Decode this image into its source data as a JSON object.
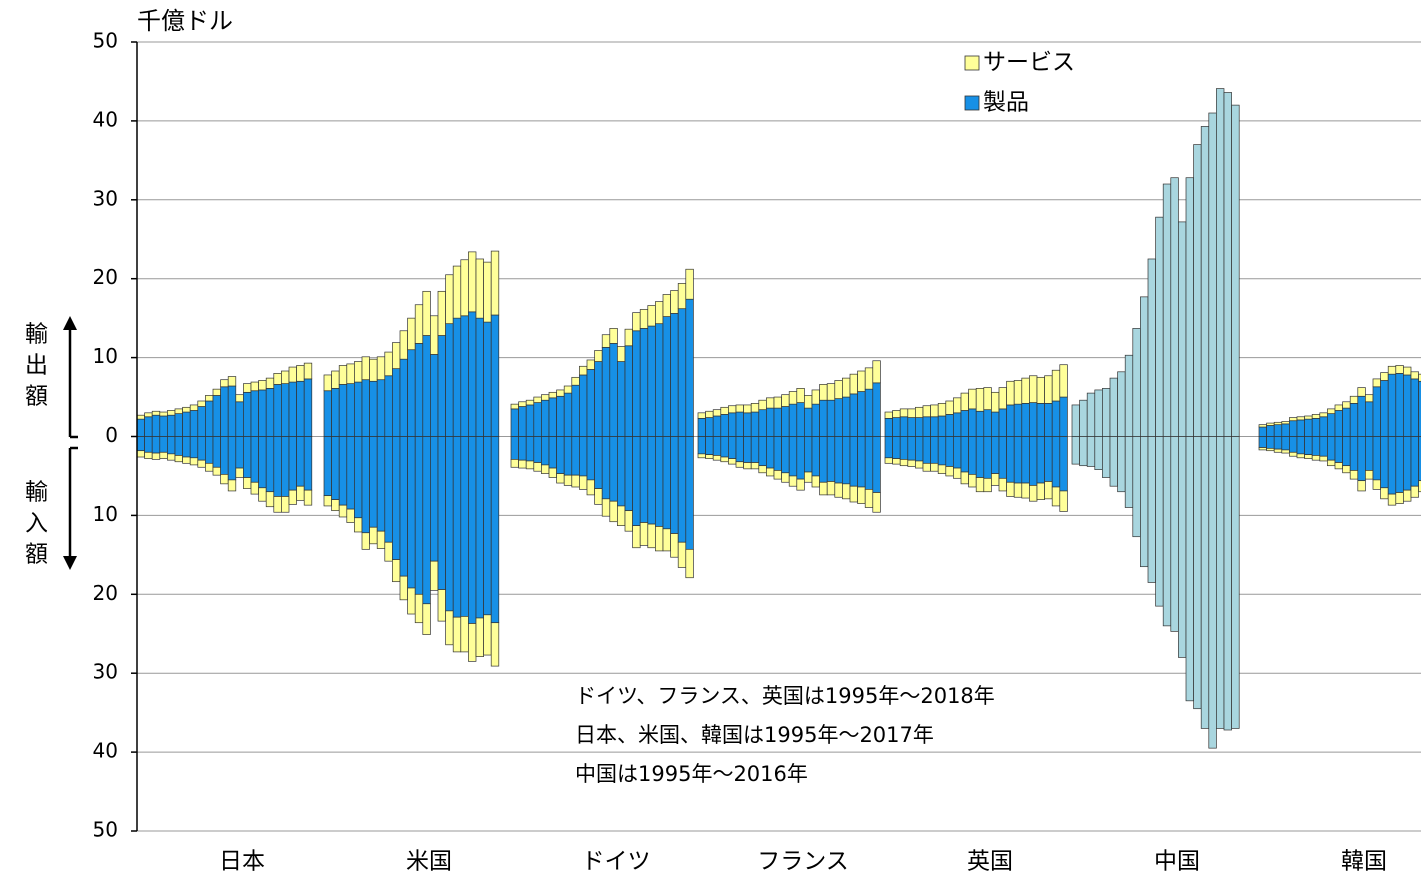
{
  "chart_data": {
    "type": "bar",
    "title": "千億ドル",
    "export_label": "輸出額",
    "import_label": "輸入額",
    "ylim": [
      -50,
      50
    ],
    "yticks": [
      {
        "value": -50,
        "label": "50"
      },
      {
        "value": -40,
        "label": "40"
      },
      {
        "value": -30,
        "label": "30"
      },
      {
        "value": -20,
        "label": "20"
      },
      {
        "value": -10,
        "label": "10"
      },
      0,
      10,
      20,
      30,
      40,
      50
    ],
    "grid": true,
    "legend": "top-right",
    "series": [
      {
        "name": "サービス",
        "color": "#ffff99"
      },
      {
        "name": "製品",
        "color": "#1790e6"
      }
    ],
    "total_color": "#a9d6df",
    "groups": [
      {
        "name": "日本",
        "export_goods": [
          2.2,
          2.5,
          2.7,
          2.6,
          2.7,
          2.9,
          3.1,
          3.3,
          3.8,
          4.5,
          5.2,
          6.3,
          6.4,
          4.4,
          5.6,
          5.8,
          5.9,
          6.1,
          6.6,
          6.7,
          6.9,
          7.0,
          7.3
        ],
        "export_services": [
          0.5,
          0.5,
          0.5,
          0.5,
          0.6,
          0.6,
          0.6,
          0.7,
          0.7,
          0.7,
          0.8,
          0.9,
          1.2,
          0.9,
          1.1,
          1.1,
          1.2,
          1.3,
          1.4,
          1.6,
          1.9,
          2.0,
          2.0
        ],
        "import_goods": [
          -1.8,
          -2.0,
          -2.1,
          -2.0,
          -2.2,
          -2.4,
          -2.6,
          -2.7,
          -3.0,
          -3.4,
          -3.9,
          -4.8,
          -5.5,
          -4.0,
          -5.2,
          -5.8,
          -6.5,
          -7.0,
          -7.6,
          -7.6,
          -6.8,
          -6.3,
          -6.8
        ],
        "import_services": [
          -0.8,
          -0.8,
          -0.8,
          -0.8,
          -0.8,
          -0.8,
          -0.8,
          -0.9,
          -0.9,
          -1.0,
          -1.0,
          -1.2,
          -1.4,
          -1.2,
          -1.4,
          -1.5,
          -1.7,
          -1.9,
          -2.0,
          -2.0,
          -1.8,
          -1.8,
          -1.9
        ]
      },
      {
        "name": "米国",
        "export_goods": [
          5.8,
          6.1,
          6.6,
          6.7,
          6.9,
          7.2,
          7.0,
          7.2,
          7.7,
          8.6,
          9.8,
          11.0,
          11.8,
          12.8,
          10.4,
          12.8,
          14.3,
          15.0,
          15.3,
          15.8,
          15.0,
          14.5,
          15.4
        ],
        "export_services": [
          2.0,
          2.2,
          2.4,
          2.5,
          2.6,
          2.9,
          2.8,
          2.9,
          3.0,
          3.3,
          3.6,
          4.0,
          4.9,
          5.6,
          4.9,
          5.6,
          6.2,
          6.6,
          7.1,
          7.6,
          7.5,
          7.6,
          8.1
        ],
        "import_goods": [
          -7.5,
          -8.0,
          -8.7,
          -9.2,
          -10.3,
          -12.2,
          -11.5,
          -12.0,
          -13.4,
          -15.6,
          -17.7,
          -19.2,
          -20.0,
          -21.2,
          -15.8,
          -19.4,
          -22.1,
          -22.9,
          -22.8,
          -23.7,
          -23.0,
          -22.6,
          -23.6
        ],
        "import_services": [
          -1.3,
          -1.4,
          -1.5,
          -1.7,
          -1.8,
          -2.1,
          -2.1,
          -2.2,
          -2.4,
          -2.8,
          -3.0,
          -3.3,
          -3.6,
          -3.9,
          -3.7,
          -4.0,
          -4.3,
          -4.4,
          -4.5,
          -4.8,
          -4.9,
          -5.1,
          -5.5
        ]
      },
      {
        "name": "ドイツ",
        "export_goods": [
          3.5,
          3.8,
          4.0,
          4.3,
          4.6,
          4.9,
          5.1,
          5.5,
          6.5,
          7.8,
          8.5,
          9.5,
          11.3,
          11.8,
          9.5,
          11.5,
          13.4,
          13.7,
          14.0,
          14.3,
          15.2,
          15.6,
          16.2,
          17.4
        ],
        "export_services": [
          0.6,
          0.6,
          0.6,
          0.7,
          0.7,
          0.7,
          0.8,
          0.9,
          1.0,
          1.1,
          1.2,
          1.4,
          1.6,
          1.9,
          1.9,
          2.1,
          2.3,
          2.4,
          2.6,
          2.8,
          2.8,
          2.9,
          3.2,
          3.8
        ],
        "import_goods": [
          -2.9,
          -3.0,
          -3.1,
          -3.3,
          -3.6,
          -4.0,
          -4.7,
          -4.9,
          -4.9,
          -5.0,
          -5.5,
          -6.6,
          -7.9,
          -8.2,
          -8.8,
          -9.4,
          -11.3,
          -10.9,
          -11.1,
          -11.4,
          -11.7,
          -12.3,
          -13.4,
          -14.3
        ],
        "import_services": [
          -1.0,
          -1.0,
          -1.0,
          -1.1,
          -1.1,
          -1.2,
          -1.2,
          -1.3,
          -1.5,
          -1.7,
          -1.9,
          -2.0,
          -2.2,
          -2.6,
          -2.5,
          -2.6,
          -2.8,
          -2.9,
          -3.0,
          -3.1,
          -2.8,
          -3.0,
          -3.2,
          -3.6
        ]
      },
      {
        "name": "フランス",
        "export_goods": [
          2.3,
          2.4,
          2.6,
          2.8,
          3.0,
          3.1,
          3.0,
          3.1,
          3.4,
          3.6,
          3.6,
          3.8,
          4.1,
          4.3,
          3.6,
          4.1,
          4.6,
          4.6,
          4.8,
          5.0,
          5.4,
          5.7,
          6.0,
          6.8
        ],
        "export_services": [
          0.7,
          0.8,
          0.8,
          0.9,
          0.9,
          0.9,
          1.0,
          1.1,
          1.2,
          1.3,
          1.4,
          1.5,
          1.6,
          1.8,
          1.6,
          1.8,
          2.0,
          2.1,
          2.3,
          2.4,
          2.5,
          2.6,
          2.7,
          2.8
        ],
        "import_goods": [
          -2.2,
          -2.3,
          -2.4,
          -2.6,
          -2.8,
          -3.2,
          -3.3,
          -3.3,
          -3.7,
          -4.0,
          -4.3,
          -4.6,
          -5.0,
          -5.4,
          -4.5,
          -5.0,
          -5.8,
          -5.7,
          -5.9,
          -6.0,
          -6.3,
          -6.4,
          -6.7,
          -7.1
        ],
        "import_services": [
          -0.5,
          -0.5,
          -0.6,
          -0.6,
          -0.7,
          -0.7,
          -0.8,
          -0.8,
          -0.9,
          -1.0,
          -1.1,
          -1.2,
          -1.3,
          -1.4,
          -1.3,
          -1.4,
          -1.6,
          -1.7,
          -1.8,
          -1.9,
          -2.0,
          -2.1,
          -2.3,
          -2.5
        ]
      },
      {
        "name": "英国",
        "export_goods": [
          2.3,
          2.4,
          2.5,
          2.4,
          2.4,
          2.5,
          2.5,
          2.6,
          2.8,
          3.0,
          3.3,
          3.5,
          3.2,
          3.4,
          3.1,
          3.5,
          4.0,
          4.1,
          4.2,
          4.3,
          4.2,
          4.2,
          4.5,
          5.0
        ],
        "export_services": [
          0.8,
          0.9,
          1.0,
          1.1,
          1.3,
          1.4,
          1.5,
          1.6,
          1.7,
          1.9,
          2.2,
          2.5,
          2.9,
          2.8,
          2.5,
          2.7,
          3.0,
          3.0,
          3.2,
          3.4,
          3.3,
          3.5,
          3.9,
          4.1
        ],
        "import_goods": [
          -2.7,
          -2.8,
          -2.9,
          -3.0,
          -3.1,
          -3.4,
          -3.4,
          -3.6,
          -3.8,
          -4.0,
          -4.5,
          -4.8,
          -5.2,
          -5.3,
          -4.7,
          -5.3,
          -5.8,
          -5.9,
          -5.9,
          -6.2,
          -5.9,
          -5.7,
          -6.4,
          -6.9
        ],
        "import_services": [
          -0.7,
          -0.7,
          -0.8,
          -0.8,
          -0.9,
          -1.0,
          -1.0,
          -1.1,
          -1.2,
          -1.3,
          -1.5,
          -1.6,
          -1.8,
          -1.7,
          -1.5,
          -1.6,
          -1.8,
          -1.8,
          -1.9,
          -2.0,
          -2.1,
          -2.2,
          -2.4,
          -2.6
        ]
      },
      {
        "name": "中国",
        "export_total": [
          4.0,
          4.6,
          5.5,
          5.9,
          6.1,
          7.4,
          8.2,
          10.3,
          13.7,
          17.7,
          22.5,
          27.8,
          32.0,
          32.8,
          27.2,
          32.8,
          37.0,
          39.3,
          41.0,
          44.1,
          43.6,
          42.0
        ],
        "import_total": [
          -3.5,
          -3.7,
          -3.8,
          -4.2,
          -5.2,
          -6.3,
          -7.0,
          -9.0,
          -12.7,
          -16.5,
          -18.5,
          -21.5,
          -24.0,
          -24.7,
          -28.0,
          -33.5,
          -34.5,
          -37.0,
          -39.5,
          -37.0,
          -37.2,
          -37.0
        ]
      },
      {
        "name": "韓国",
        "export_goods": [
          1.2,
          1.4,
          1.5,
          1.6,
          2.0,
          2.1,
          2.2,
          2.3,
          2.5,
          2.9,
          3.3,
          3.6,
          4.2,
          5.1,
          4.4,
          6.3,
          7.1,
          7.9,
          8.0,
          7.8,
          7.3,
          7.0,
          7.6
        ],
        "export_services": [
          0.3,
          0.3,
          0.3,
          0.3,
          0.4,
          0.4,
          0.4,
          0.5,
          0.5,
          0.6,
          0.7,
          0.8,
          0.9,
          1.1,
          0.9,
          1.0,
          1.0,
          1.0,
          1.0,
          1.0,
          0.9,
          0.9,
          0.9
        ],
        "import_goods": [
          -1.4,
          -1.5,
          -1.6,
          -1.7,
          -2.0,
          -2.2,
          -2.3,
          -2.4,
          -2.5,
          -3.0,
          -3.3,
          -3.7,
          -4.3,
          -5.6,
          -4.3,
          -5.5,
          -6.5,
          -7.3,
          -7.1,
          -6.8,
          -6.3,
          -5.6,
          -6.3
        ],
        "import_services": [
          -0.3,
          -0.3,
          -0.4,
          -0.4,
          -0.5,
          -0.5,
          -0.5,
          -0.6,
          -0.6,
          -0.7,
          -0.8,
          -0.9,
          -1.1,
          -1.3,
          -1.1,
          -1.2,
          -1.4,
          -1.4,
          -1.4,
          -1.4,
          -1.4,
          -1.4,
          -1.5
        ]
      }
    ],
    "annotations": [
      "ドイツ、フランス、英国は1995年～2018年",
      "日本、米国、韓国は1995年～2017年",
      "中国は1995年～2016年"
    ]
  }
}
